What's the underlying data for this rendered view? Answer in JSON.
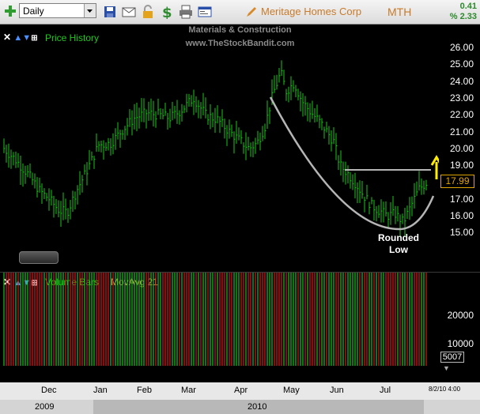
{
  "toolbar": {
    "timeframe": "Daily",
    "company": "Meritage Homes Corp",
    "ticker": "MTH",
    "change": "0.41",
    "change_pct": "% 2.33",
    "icons": [
      "plus-icon",
      "save-icon",
      "mail-icon",
      "lock-icon",
      "dollar-icon",
      "print-icon",
      "window-icon",
      "pencil-icon"
    ]
  },
  "watermark": {
    "sector": "Materials & Construction",
    "site": "www.TheStockBandit.com"
  },
  "price_pane": {
    "controls": "✕",
    "title": "Price History",
    "ticks": [
      "26.00",
      "25.00",
      "24.00",
      "23.00",
      "22.00",
      "21.00",
      "20.00",
      "19.00",
      "18.00",
      "17.00",
      "16.00",
      "15.00"
    ],
    "last_price": "17.99",
    "annotation_line1": "Rounded",
    "annotation_line2": "Low"
  },
  "volume_pane": {
    "controls": "✕",
    "title": "Volume Bars",
    "ma_label": "MovAvg 21",
    "ticks": [
      "20000",
      "10000"
    ],
    "last_volume": "5007"
  },
  "axis": {
    "months": [
      "Dec",
      "Jan",
      "Feb",
      "Mar",
      "Apr",
      "May",
      "Jun",
      "Jul"
    ],
    "date_readout": "8/2/10 4:00",
    "years": [
      "2009",
      "2010"
    ]
  },
  "colors": {
    "price_bar": "#19c619",
    "vol_up": "#19c619",
    "vol_down": "#e01818",
    "ma": "#d8a060",
    "overlay": "#b5b5b5",
    "arrow": "#ffee00"
  }
}
